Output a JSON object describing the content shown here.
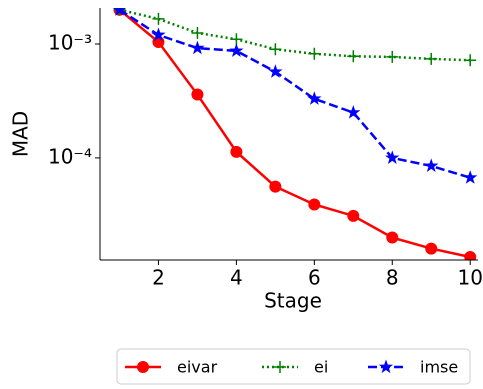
{
  "chart_data": {
    "type": "line",
    "x_label": "Stage",
    "y_label": "MAD",
    "log_y": true,
    "x": [
      1,
      2,
      3,
      4,
      5,
      6,
      7,
      8,
      9,
      10
    ],
    "series": [
      {
        "name": "eivar",
        "color": "#ff0000",
        "linestyle": "solid",
        "marker": "circle",
        "values": [
          0.002,
          0.00104,
          0.00036,
          0.000113,
          5.6e-05,
          3.9e-05,
          3.1e-05,
          2e-05,
          1.6e-05,
          1.35e-05
        ]
      },
      {
        "name": "ei",
        "color": "#008000",
        "linestyle": "dotted",
        "marker": "plus",
        "values": [
          0.002,
          0.00166,
          0.00125,
          0.0011,
          0.0009,
          0.00082,
          0.00078,
          0.00077,
          0.00074,
          0.00072
        ]
      },
      {
        "name": "imse",
        "color": "#0000ff",
        "linestyle": "dashed",
        "marker": "star",
        "values": [
          0.002,
          0.0012,
          0.00092,
          0.00087,
          0.00057,
          0.00033,
          0.00025,
          0.0001,
          8.5e-05,
          6.7e-05
        ]
      }
    ],
    "xlim": [
      0.5,
      10.2
    ],
    "xticks": [
      2,
      4,
      6,
      8,
      10
    ],
    "ylim": [
      1.27e-05,
      0.00207
    ],
    "yticks": [
      {
        "value": 0.001,
        "label": "10⁻³"
      },
      {
        "value": 0.0001,
        "label": "10⁻⁴"
      }
    ],
    "legend": "bottom"
  }
}
